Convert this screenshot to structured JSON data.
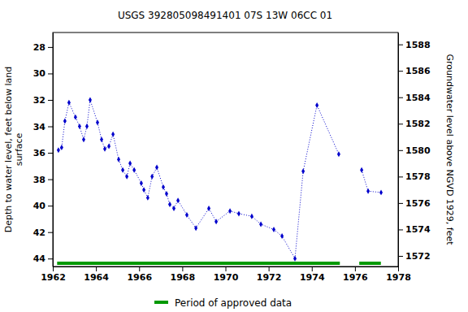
{
  "chart_data": {
    "type": "line",
    "title": "USGS 392805098491401 07S 13W 06CC  01",
    "ylabel": [
      "Depth to water level, feet below land",
      "surface"
    ],
    "y2label": "Groundwater level above NGVD 1929, feet",
    "x": [
      1962.26,
      1962.41,
      1962.56,
      1962.75,
      1963.05,
      1963.24,
      1963.43,
      1963.58,
      1963.73,
      1964.07,
      1964.26,
      1964.41,
      1964.6,
      1964.79,
      1965.05,
      1965.24,
      1965.43,
      1965.58,
      1965.77,
      1966.1,
      1966.22,
      1966.4,
      1966.6,
      1966.82,
      1967.12,
      1967.27,
      1967.42,
      1967.61,
      1967.8,
      1968.21,
      1968.63,
      1969.23,
      1969.57,
      1970.21,
      1970.62,
      1971.22,
      1971.64,
      1972.24,
      1972.62,
      1973.22,
      1973.6,
      1974.24,
      1975.25,
      1975.8,
      1976.31,
      1976.61,
      1977.21
    ],
    "series": [
      {
        "color": "#0000cc",
        "marker": "diamond",
        "line_style": "dotted",
        "values": [
          35.8,
          35.6,
          33.6,
          32.2,
          33.3,
          34.0,
          35.0,
          34.0,
          32.0,
          33.7,
          35.0,
          35.7,
          35.5,
          34.6,
          36.5,
          37.3,
          37.8,
          36.8,
          37.3,
          38.3,
          38.8,
          39.4,
          37.8,
          37.1,
          38.6,
          39.1,
          39.9,
          40.2,
          39.6,
          40.7,
          41.7,
          40.2,
          41.2,
          40.4,
          40.6,
          40.8,
          41.4,
          41.8,
          42.3,
          44.0,
          37.4,
          32.4,
          36.1,
          null,
          37.3,
          38.9,
          39.0
        ]
      }
    ],
    "xlim": [
      1962,
      1978
    ],
    "xticks": [
      1962,
      1964,
      1966,
      1968,
      1970,
      1972,
      1974,
      1976,
      1978
    ],
    "ylim": [
      44.6,
      26.9
    ],
    "yticks": [
      28,
      30,
      32,
      34,
      36,
      38,
      40,
      42,
      44
    ],
    "y2lim": [
      1571.2,
      1588.9
    ],
    "y2ticks": [
      1572,
      1574,
      1576,
      1578,
      1580,
      1582,
      1584,
      1586,
      1588
    ],
    "approved_periods": [
      [
        1962.2,
        1975.3
      ],
      [
        1976.2,
        1977.2
      ]
    ],
    "approved_label": "Period of approved data",
    "approved_color": "#009900",
    "grid": false
  }
}
